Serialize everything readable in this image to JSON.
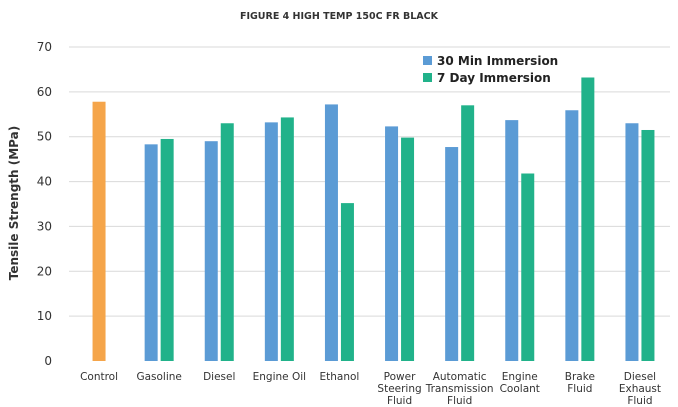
{
  "chart_data": {
    "type": "bar",
    "title": "FIGURE 4 HIGH TEMP 150C FR BLACK",
    "xlabel": "",
    "ylabel": "Tensile Strength (MPa)",
    "ylim": [
      0,
      70
    ],
    "yticks": [
      0,
      10,
      20,
      30,
      40,
      50,
      60,
      70
    ],
    "grid": true,
    "legend_position": "top-right",
    "categories": [
      "Control",
      "Gasoline",
      "Diesel",
      "Engine Oil",
      "Ethanol",
      "Power Steering Fluid",
      "Automatic Transmission Fluid",
      "Engine Coolant",
      "Brake Fluid",
      "Diesel Exhaust Fluid"
    ],
    "category_lines": [
      [
        "Control"
      ],
      [
        "Gasoline"
      ],
      [
        "Diesel"
      ],
      [
        "Engine Oil"
      ],
      [
        "Ethanol"
      ],
      [
        "Power",
        "Steering",
        "Fluid"
      ],
      [
        "Automatic",
        "Transmission",
        "Fluid"
      ],
      [
        "Engine",
        "Coolant"
      ],
      [
        "Brake",
        "Fluid"
      ],
      [
        "Diesel",
        "Exhaust",
        "Fluid"
      ]
    ],
    "control": {
      "value": 57.8,
      "color": "#F5A54A"
    },
    "series": [
      {
        "name": "30 Min Immersion",
        "color": "#5B9BD5",
        "values": [
          null,
          48.3,
          49.0,
          53.2,
          57.2,
          52.3,
          47.7,
          53.7,
          55.9,
          53.0
        ]
      },
      {
        "name": "7 Day Immersion",
        "color": "#21B28A",
        "values": [
          null,
          49.5,
          53.0,
          54.3,
          35.2,
          49.8,
          57.0,
          41.8,
          63.2,
          51.5
        ]
      }
    ]
  }
}
